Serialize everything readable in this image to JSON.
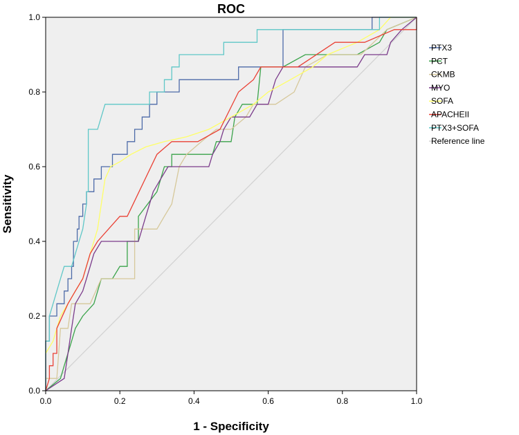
{
  "chart_data": {
    "type": "line",
    "title": "ROC",
    "xlabel": "1 - Specificity",
    "ylabel": "Sensitivity",
    "xlim": [
      0,
      1
    ],
    "ylim": [
      0,
      1
    ],
    "x_ticks": [
      "0.0",
      "0.2",
      "0.4",
      "0.6",
      "0.8",
      "1.0"
    ],
    "y_ticks": [
      "0.0",
      "0.2",
      "0.4",
      "0.6",
      "0.8",
      "1.0"
    ],
    "background_color": "#efefef",
    "legend_position": "right",
    "series": [
      {
        "name": "PTX3",
        "color": "#4c6aa8",
        "points": [
          [
            0,
            0
          ],
          [
            0,
            0.033
          ],
          [
            0,
            0.133
          ],
          [
            0.01,
            0.133
          ],
          [
            0.01,
            0.2
          ],
          [
            0.03,
            0.2
          ],
          [
            0.03,
            0.233
          ],
          [
            0.05,
            0.233
          ],
          [
            0.05,
            0.267
          ],
          [
            0.06,
            0.267
          ],
          [
            0.06,
            0.3
          ],
          [
            0.07,
            0.3
          ],
          [
            0.07,
            0.333
          ],
          [
            0.075,
            0.333
          ],
          [
            0.075,
            0.4
          ],
          [
            0.085,
            0.4
          ],
          [
            0.085,
            0.433
          ],
          [
            0.09,
            0.433
          ],
          [
            0.09,
            0.467
          ],
          [
            0.1,
            0.467
          ],
          [
            0.1,
            0.5
          ],
          [
            0.11,
            0.5
          ],
          [
            0.11,
            0.533
          ],
          [
            0.13,
            0.533
          ],
          [
            0.13,
            0.567
          ],
          [
            0.15,
            0.567
          ],
          [
            0.15,
            0.6
          ],
          [
            0.18,
            0.6
          ],
          [
            0.18,
            0.633
          ],
          [
            0.22,
            0.633
          ],
          [
            0.22,
            0.667
          ],
          [
            0.24,
            0.667
          ],
          [
            0.24,
            0.7
          ],
          [
            0.26,
            0.7
          ],
          [
            0.26,
            0.733
          ],
          [
            0.28,
            0.733
          ],
          [
            0.28,
            0.767
          ],
          [
            0.3,
            0.767
          ],
          [
            0.3,
            0.8
          ],
          [
            0.36,
            0.8
          ],
          [
            0.36,
            0.833
          ],
          [
            0.52,
            0.833
          ],
          [
            0.52,
            0.867
          ],
          [
            0.64,
            0.867
          ],
          [
            0.64,
            0.967
          ],
          [
            0.88,
            0.967
          ],
          [
            0.88,
            1.0
          ],
          [
            1.0,
            1.0
          ]
        ]
      },
      {
        "name": "PCT",
        "color": "#3aa34a",
        "points": [
          [
            0,
            0
          ],
          [
            0.04,
            0.033
          ],
          [
            0.05,
            0.067
          ],
          [
            0.06,
            0.1
          ],
          [
            0.07,
            0.133
          ],
          [
            0.08,
            0.167
          ],
          [
            0.1,
            0.2
          ],
          [
            0.13,
            0.233
          ],
          [
            0.15,
            0.3
          ],
          [
            0.18,
            0.3
          ],
          [
            0.2,
            0.333
          ],
          [
            0.22,
            0.333
          ],
          [
            0.22,
            0.4
          ],
          [
            0.25,
            0.4
          ],
          [
            0.25,
            0.467
          ],
          [
            0.3,
            0.533
          ],
          [
            0.32,
            0.6
          ],
          [
            0.34,
            0.6
          ],
          [
            0.34,
            0.633
          ],
          [
            0.45,
            0.633
          ],
          [
            0.46,
            0.667
          ],
          [
            0.5,
            0.667
          ],
          [
            0.51,
            0.733
          ],
          [
            0.53,
            0.767
          ],
          [
            0.57,
            0.767
          ],
          [
            0.58,
            0.867
          ],
          [
            0.64,
            0.867
          ],
          [
            0.7,
            0.9
          ],
          [
            0.84,
            0.9
          ],
          [
            0.9,
            0.933
          ],
          [
            0.92,
            0.967
          ],
          [
            1.0,
            1.0
          ]
        ]
      },
      {
        "name": "CKMB",
        "color": "#d6c89a",
        "points": [
          [
            0,
            0.033
          ],
          [
            0.03,
            0.033
          ],
          [
            0.04,
            0.167
          ],
          [
            0.06,
            0.167
          ],
          [
            0.07,
            0.233
          ],
          [
            0.12,
            0.233
          ],
          [
            0.15,
            0.3
          ],
          [
            0.24,
            0.3
          ],
          [
            0.24,
            0.433
          ],
          [
            0.3,
            0.433
          ],
          [
            0.32,
            0.467
          ],
          [
            0.34,
            0.5
          ],
          [
            0.36,
            0.6
          ],
          [
            0.38,
            0.633
          ],
          [
            0.42,
            0.667
          ],
          [
            0.46,
            0.7
          ],
          [
            0.5,
            0.7
          ],
          [
            0.54,
            0.733
          ],
          [
            0.56,
            0.767
          ],
          [
            0.62,
            0.767
          ],
          [
            0.67,
            0.8
          ],
          [
            0.7,
            0.867
          ],
          [
            0.76,
            0.9
          ],
          [
            0.85,
            0.9
          ],
          [
            0.92,
            0.967
          ],
          [
            1.0,
            1.0
          ]
        ]
      },
      {
        "name": "MYO",
        "color": "#7a3a8a",
        "points": [
          [
            0,
            0
          ],
          [
            0.05,
            0.033
          ],
          [
            0.06,
            0.1
          ],
          [
            0.07,
            0.167
          ],
          [
            0.08,
            0.233
          ],
          [
            0.1,
            0.267
          ],
          [
            0.11,
            0.3
          ],
          [
            0.12,
            0.333
          ],
          [
            0.13,
            0.367
          ],
          [
            0.15,
            0.4
          ],
          [
            0.25,
            0.4
          ],
          [
            0.27,
            0.467
          ],
          [
            0.28,
            0.5
          ],
          [
            0.29,
            0.533
          ],
          [
            0.31,
            0.567
          ],
          [
            0.33,
            0.6
          ],
          [
            0.44,
            0.6
          ],
          [
            0.45,
            0.633
          ],
          [
            0.47,
            0.667
          ],
          [
            0.48,
            0.7
          ],
          [
            0.5,
            0.733
          ],
          [
            0.55,
            0.733
          ],
          [
            0.57,
            0.767
          ],
          [
            0.6,
            0.767
          ],
          [
            0.62,
            0.833
          ],
          [
            0.64,
            0.867
          ],
          [
            0.84,
            0.867
          ],
          [
            0.86,
            0.9
          ],
          [
            0.92,
            0.9
          ],
          [
            0.93,
            0.933
          ],
          [
            0.96,
            0.967
          ],
          [
            1.0,
            1.0
          ]
        ]
      },
      {
        "name": "SOFA",
        "color": "#ffff66",
        "points": [
          [
            0,
            0.1
          ],
          [
            0.02,
            0.133
          ],
          [
            0.04,
            0.2
          ],
          [
            0.06,
            0.233
          ],
          [
            0.08,
            0.267
          ],
          [
            0.1,
            0.3
          ],
          [
            0.12,
            0.367
          ],
          [
            0.14,
            0.433
          ],
          [
            0.16,
            0.567
          ],
          [
            0.175,
            0.6
          ],
          [
            0.2,
            0.613
          ],
          [
            0.23,
            0.633
          ],
          [
            0.27,
            0.653
          ],
          [
            0.32,
            0.667
          ],
          [
            0.38,
            0.68
          ],
          [
            0.44,
            0.7
          ],
          [
            0.5,
            0.733
          ],
          [
            0.56,
            0.767
          ],
          [
            0.6,
            0.8
          ],
          [
            0.66,
            0.833
          ],
          [
            0.72,
            0.867
          ],
          [
            0.76,
            0.9
          ],
          [
            0.84,
            0.933
          ],
          [
            0.9,
            0.967
          ],
          [
            0.93,
            1.0
          ],
          [
            1.0,
            1.0
          ]
        ]
      },
      {
        "name": "APACHEII",
        "color": "#ea4034",
        "points": [
          [
            0,
            0
          ],
          [
            0.01,
            0.033
          ],
          [
            0.01,
            0.067
          ],
          [
            0.02,
            0.067
          ],
          [
            0.02,
            0.1
          ],
          [
            0.03,
            0.1
          ],
          [
            0.03,
            0.167
          ],
          [
            0.06,
            0.233
          ],
          [
            0.08,
            0.267
          ],
          [
            0.1,
            0.3
          ],
          [
            0.12,
            0.367
          ],
          [
            0.14,
            0.4
          ],
          [
            0.2,
            0.467
          ],
          [
            0.22,
            0.467
          ],
          [
            0.3,
            0.633
          ],
          [
            0.34,
            0.667
          ],
          [
            0.41,
            0.667
          ],
          [
            0.47,
            0.7
          ],
          [
            0.52,
            0.8
          ],
          [
            0.56,
            0.833
          ],
          [
            0.58,
            0.867
          ],
          [
            0.68,
            0.867
          ],
          [
            0.78,
            0.933
          ],
          [
            0.84,
            0.933
          ],
          [
            0.86,
            0.933
          ],
          [
            0.94,
            0.967
          ],
          [
            1.0,
            0.967
          ],
          [
            1.0,
            1.0
          ]
        ]
      },
      {
        "name": "PTX3+SOFA",
        "color": "#5ec7c7",
        "points": [
          [
            0,
            0
          ],
          [
            0,
            0.133
          ],
          [
            0.01,
            0.133
          ],
          [
            0.01,
            0.2
          ],
          [
            0.02,
            0.233
          ],
          [
            0.03,
            0.267
          ],
          [
            0.04,
            0.3
          ],
          [
            0.05,
            0.333
          ],
          [
            0.07,
            0.333
          ],
          [
            0.08,
            0.367
          ],
          [
            0.09,
            0.4
          ],
          [
            0.1,
            0.433
          ],
          [
            0.11,
            0.5
          ],
          [
            0.11,
            0.533
          ],
          [
            0.115,
            0.533
          ],
          [
            0.115,
            0.7
          ],
          [
            0.14,
            0.7
          ],
          [
            0.16,
            0.767
          ],
          [
            0.28,
            0.767
          ],
          [
            0.28,
            0.8
          ],
          [
            0.32,
            0.8
          ],
          [
            0.32,
            0.833
          ],
          [
            0.34,
            0.833
          ],
          [
            0.34,
            0.867
          ],
          [
            0.36,
            0.867
          ],
          [
            0.36,
            0.9
          ],
          [
            0.48,
            0.9
          ],
          [
            0.48,
            0.933
          ],
          [
            0.57,
            0.933
          ],
          [
            0.57,
            0.967
          ],
          [
            0.9,
            0.967
          ],
          [
            0.9,
            1.0
          ],
          [
            1.0,
            1.0
          ]
        ]
      },
      {
        "name": "Reference line",
        "color": "#d3d3d3",
        "points": [
          [
            0,
            0
          ],
          [
            1,
            1
          ]
        ]
      }
    ]
  }
}
